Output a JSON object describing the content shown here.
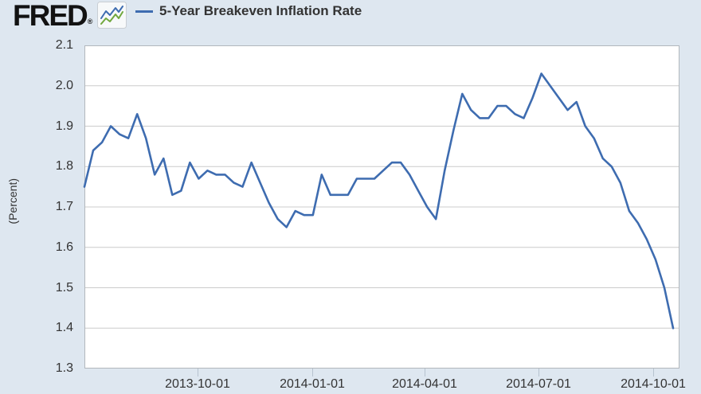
{
  "header": {
    "logo_text": "FRED",
    "logo_registered_mark": "®",
    "legend_label": "5-Year Breakeven Inflation Rate"
  },
  "chart_data": {
    "type": "line",
    "title": "5-Year Breakeven Inflation Rate",
    "xlabel": "",
    "ylabel": "(Percent)",
    "ylim": [
      1.3,
      2.1
    ],
    "grid": true,
    "legend_position": "top-left",
    "y_tick_labels": [
      "2.1",
      "2.0",
      "1.9",
      "1.8",
      "1.7",
      "1.6",
      "1.5",
      "1.4",
      "1.3"
    ],
    "x_tick_labels": [
      "2013-10-01",
      "2014-01-01",
      "2014-04-01",
      "2014-07-01",
      "2014-10-01"
    ],
    "series": [
      {
        "name": "5-Year Breakeven Inflation Rate",
        "values": [
          1.75,
          1.84,
          1.86,
          1.9,
          1.88,
          1.87,
          1.93,
          1.87,
          1.78,
          1.82,
          1.73,
          1.74,
          1.81,
          1.77,
          1.79,
          1.78,
          1.78,
          1.76,
          1.75,
          1.81,
          1.76,
          1.71,
          1.67,
          1.65,
          1.69,
          1.68,
          1.68,
          1.78,
          1.73,
          1.73,
          1.73,
          1.77,
          1.77,
          1.77,
          1.79,
          1.81,
          1.81,
          1.78,
          1.74,
          1.7,
          1.67,
          1.79,
          1.89,
          1.98,
          1.94,
          1.92,
          1.92,
          1.95,
          1.95,
          1.93,
          1.92,
          1.97,
          2.03,
          2.0,
          1.97,
          1.94,
          1.96,
          1.9,
          1.87,
          1.82,
          1.8,
          1.76,
          1.69,
          1.66,
          1.62,
          1.57,
          1.5,
          1.4
        ]
      }
    ],
    "colors": {
      "line": "#3e6cb0",
      "icon_green": "#71a83e",
      "page_bg": "#dee7f0",
      "plot_bg": "#ffffff",
      "grid": "#cccccc",
      "plot_border": "#b2b7bc",
      "tick_mark": "#b7c3cf",
      "label_text": "#333333"
    }
  }
}
